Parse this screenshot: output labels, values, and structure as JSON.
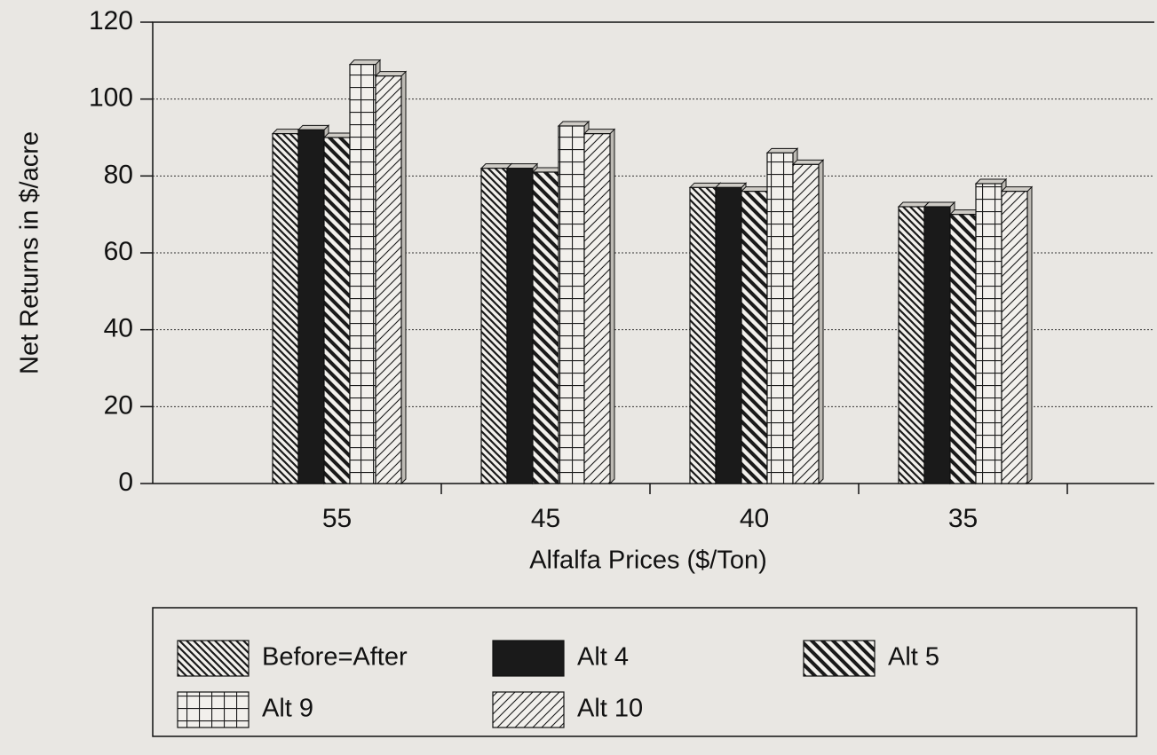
{
  "chart_data": {
    "type": "bar",
    "x_label": "Alfalfa Prices ($/Ton)",
    "y_label": "Net Returns in $/acre",
    "categories": [
      "55",
      "45",
      "40",
      "35"
    ],
    "series": [
      {
        "name": "Before=After",
        "color": "#1a1a1a",
        "values": [
          91,
          82,
          77,
          72
        ]
      },
      {
        "name": "Alt 4",
        "color": "#1a1a1a",
        "values": [
          92,
          82,
          77,
          72
        ]
      },
      {
        "name": "Alt 5",
        "color": "#1a1a1a",
        "values": [
          90,
          81,
          76,
          70
        ]
      },
      {
        "name": "Alt 9",
        "color": "#1a1a1a",
        "values": [
          109,
          93,
          86,
          78
        ]
      },
      {
        "name": "Alt 10",
        "color": "#1a1a1a",
        "values": [
          106,
          91,
          83,
          76
        ]
      }
    ],
    "ylim": [
      0,
      120
    ],
    "yticks": [
      0,
      20,
      40,
      60,
      80,
      100,
      120
    ],
    "grid": true
  }
}
